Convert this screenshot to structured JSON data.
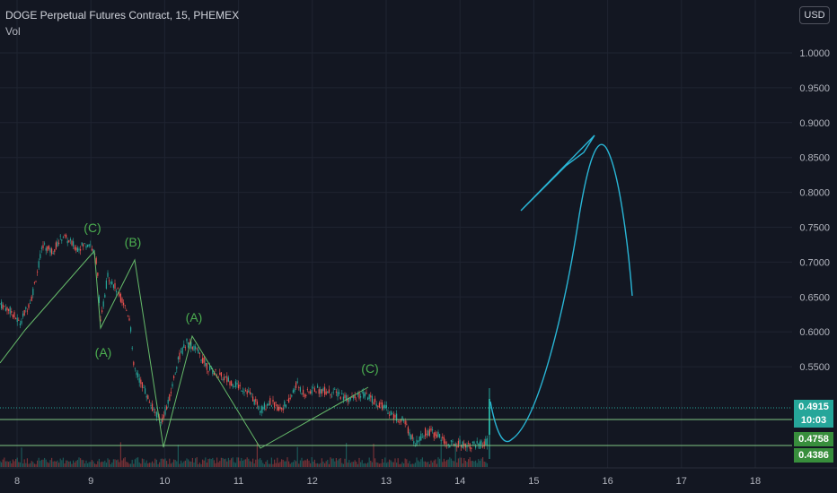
{
  "legend": {
    "title": "DOGE Perpetual Futures Contract, 15, PHEMEX",
    "volume": "Vol"
  },
  "currency_button": "USD",
  "price_axis": {
    "labels": [
      "1.0000",
      "0.9500",
      "0.9000",
      "0.8500",
      "0.8000",
      "0.7500",
      "0.7000",
      "0.6500",
      "0.6000",
      "0.5500"
    ]
  },
  "time_axis": {
    "labels": [
      "8",
      "9",
      "10",
      "11",
      "12",
      "13",
      "14",
      "15",
      "16",
      "17",
      "18"
    ]
  },
  "price_labels": {
    "last": "0.4915",
    "countdown": "10:03",
    "level_a": "0.4758",
    "level_b": "0.4386"
  },
  "annotations": [
    "(C)",
    "(B)",
    "(A)",
    "(A)",
    "(C)"
  ],
  "colors": {
    "background": "#131722",
    "grid": "#1f2431",
    "up_candle": "#26a69a",
    "down_candle": "#ef5350",
    "annotation": "#4caf50",
    "wave_line": "#66bb6a",
    "projection": "#29b6d6",
    "last_price": "#26a69a",
    "level_label": "#388e3c"
  }
}
